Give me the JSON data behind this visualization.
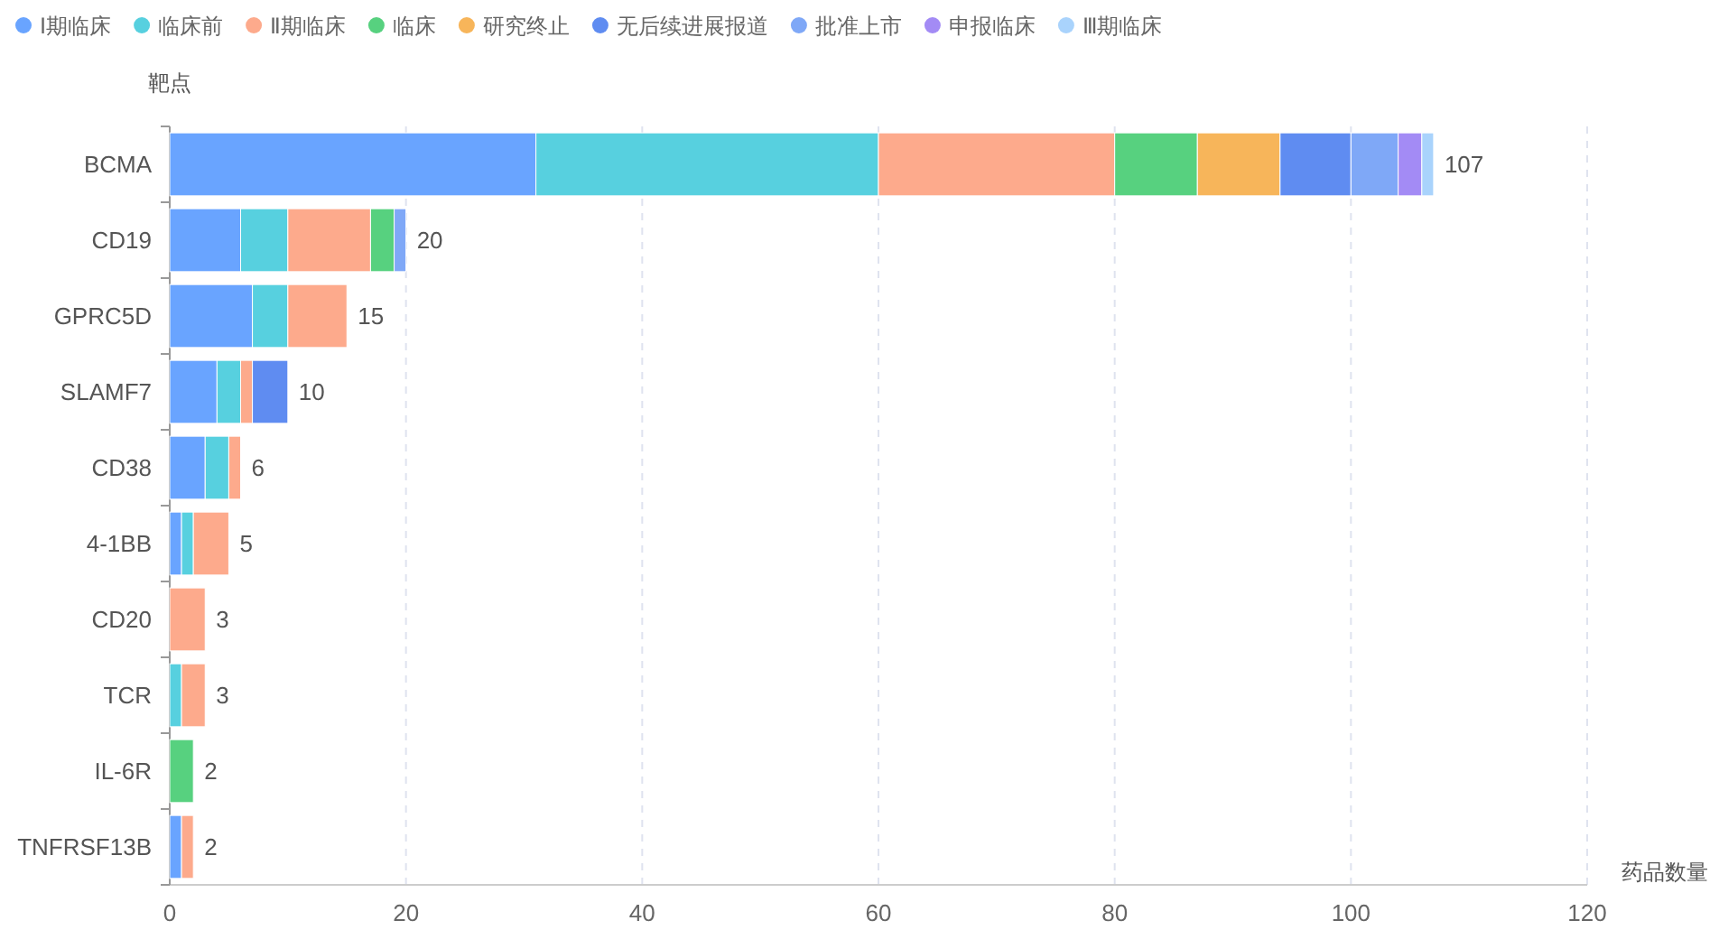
{
  "chart_data": {
    "type": "bar",
    "orientation": "horizontal",
    "stacked": true,
    "xlabel": "药品数量",
    "ylabel": "靶点",
    "categories": [
      "BCMA",
      "CD19",
      "GPRC5D",
      "SLAMF7",
      "CD38",
      "4-1BB",
      "CD20",
      "TCR",
      "IL-6R",
      "TNFRSF13B"
    ],
    "series": [
      {
        "name": "Ⅰ期临床",
        "color": "#69a4ff",
        "values": [
          31,
          6,
          7,
          4,
          3,
          1,
          0,
          0,
          0,
          1
        ]
      },
      {
        "name": "临床前",
        "color": "#57d0df",
        "values": [
          29,
          4,
          3,
          2,
          2,
          1,
          0,
          1,
          0,
          0
        ]
      },
      {
        "name": "Ⅱ期临床",
        "color": "#fdaa8c",
        "values": [
          20,
          7,
          5,
          1,
          1,
          3,
          3,
          2,
          0,
          1
        ]
      },
      {
        "name": "临床",
        "color": "#57d17f",
        "values": [
          7,
          2,
          0,
          0,
          0,
          0,
          0,
          0,
          2,
          0
        ]
      },
      {
        "name": "研究终止",
        "color": "#f7b55a",
        "values": [
          7,
          0,
          0,
          0,
          0,
          0,
          0,
          0,
          0,
          0
        ]
      },
      {
        "name": "无后续进展报道",
        "color": "#5f8cf1",
        "values": [
          6,
          0,
          0,
          3,
          0,
          0,
          0,
          0,
          0,
          0
        ]
      },
      {
        "name": "批准上市",
        "color": "#7fa8f7",
        "values": [
          4,
          1,
          0,
          0,
          0,
          0,
          0,
          0,
          0,
          0
        ]
      },
      {
        "name": "申报临床",
        "color": "#a38bf5",
        "values": [
          2,
          0,
          0,
          0,
          0,
          0,
          0,
          0,
          0,
          0
        ]
      },
      {
        "name": "Ⅲ期临床",
        "color": "#a9d3fc",
        "values": [
          1,
          0,
          0,
          0,
          0,
          0,
          0,
          0,
          0,
          0
        ]
      }
    ],
    "totals": [
      "107",
      "20",
      "15",
      "10",
      "6",
      "5",
      "3",
      "3",
      "2",
      "2"
    ],
    "xlim": [
      0,
      120
    ],
    "xticks": [
      0,
      20,
      40,
      60,
      80,
      100,
      120
    ],
    "grid": "x",
    "legend": "top left"
  }
}
